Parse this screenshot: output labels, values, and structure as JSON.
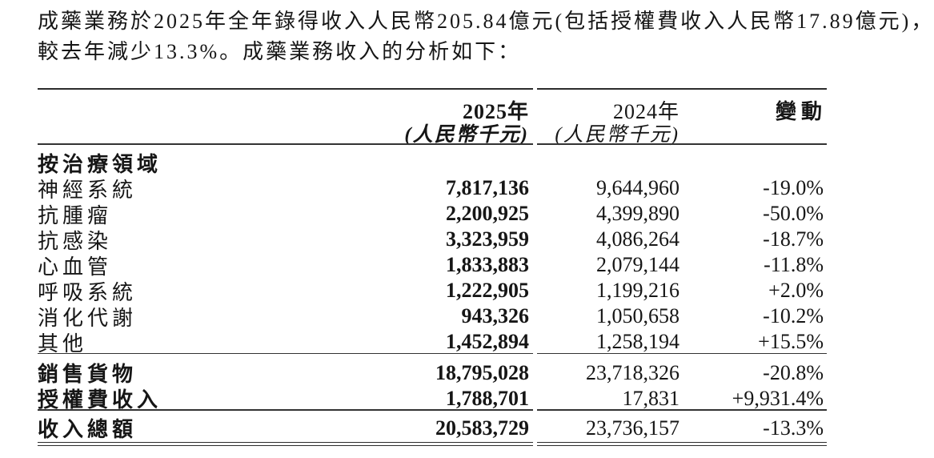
{
  "intro": {
    "line1": "成藥業務於2025年全年錄得收入人民幣205.84億元(包括授權費收入人民幣17.89億元)，",
    "line2": "較去年減少13.3%。成藥業務收入的分析如下："
  },
  "table": {
    "header": {
      "col_2025_year": "2025年",
      "col_2025_unit": "(人民幣千元)",
      "col_2024_year": "2024年",
      "col_2024_unit": "(人民幣千元)",
      "col_change": "變動"
    },
    "section_label": "按治療領域",
    "rows": [
      {
        "label": "神經系統",
        "v2025": "7,817,136",
        "v2024": "9,644,960",
        "change": "-19.0%"
      },
      {
        "label": "抗腫瘤",
        "v2025": "2,200,925",
        "v2024": "4,399,890",
        "change": "-50.0%"
      },
      {
        "label": "抗感染",
        "v2025": "3,323,959",
        "v2024": "4,086,264",
        "change": "-18.7%"
      },
      {
        "label": "心血管",
        "v2025": "1,833,883",
        "v2024": "2,079,144",
        "change": "-11.8%"
      },
      {
        "label": "呼吸系統",
        "v2025": "1,222,905",
        "v2024": "1,199,216",
        "change": "+2.0%"
      },
      {
        "label": "消化代謝",
        "v2025": "943,326",
        "v2024": "1,050,658",
        "change": "-10.2%"
      },
      {
        "label": "其他",
        "v2025": "1,452,894",
        "v2024": "1,258,194",
        "change": "+15.5%"
      }
    ],
    "subtotal_rows": [
      {
        "label": "銷售貨物",
        "v2025": "18,795,028",
        "v2024": "23,718,326",
        "change": "-20.8%"
      },
      {
        "label": "授權費收入",
        "v2025": "1,788,701",
        "v2024": "17,831",
        "change": "+9,931.4%"
      }
    ],
    "total_row": {
      "label": "收入總額",
      "v2025": "20,583,729",
      "v2024": "23,736,157",
      "change": "-13.3%"
    }
  },
  "colors": {
    "text": "#161616",
    "rule": "#2c2c2c",
    "background": "#ffffff"
  }
}
